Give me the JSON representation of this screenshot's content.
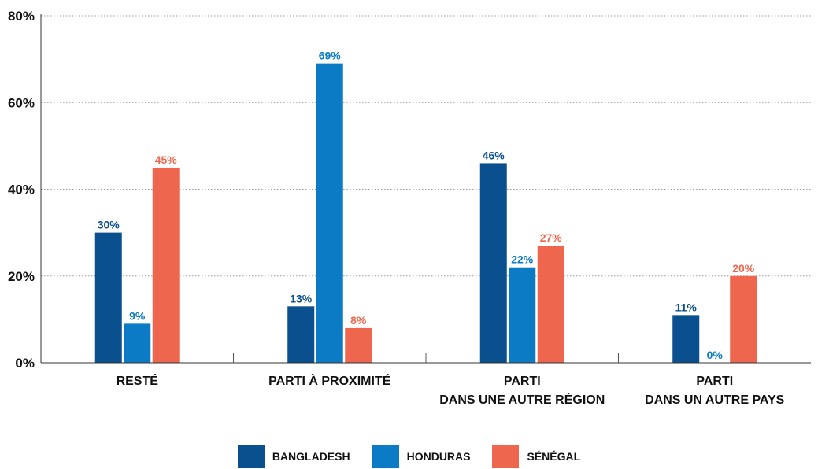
{
  "chart_data": {
    "type": "bar",
    "categories": [
      "RESTÉ",
      "PARTI À PROXIMITÉ",
      "PARTI\nDANS UNE AUTRE RÉGION",
      "PARTI\nDANS UN AUTRE PAYS"
    ],
    "series": [
      {
        "name": "BANGLADESH",
        "color": "#0a4f8e",
        "values": [
          30,
          13,
          46,
          11
        ],
        "labels": [
          "30%",
          "13%",
          "46%",
          "11%"
        ]
      },
      {
        "name": "HONDURAS",
        "color": "#0a7bc4",
        "values": [
          9,
          69,
          22,
          0
        ],
        "labels": [
          "9%",
          "69%",
          "22%",
          "0%"
        ]
      },
      {
        "name": "SÉNÉGAL",
        "color": "#ee664d",
        "values": [
          45,
          8,
          27,
          20
        ],
        "labels": [
          "45%",
          "8%",
          "27%",
          "20%"
        ]
      }
    ],
    "yticks": [
      0,
      20,
      40,
      60,
      80
    ],
    "ytick_labels": [
      "0%",
      "20%",
      "40%",
      "60%",
      "80%"
    ],
    "ylim": [
      0,
      80
    ],
    "grid": true,
    "legend_position": "bottom"
  }
}
